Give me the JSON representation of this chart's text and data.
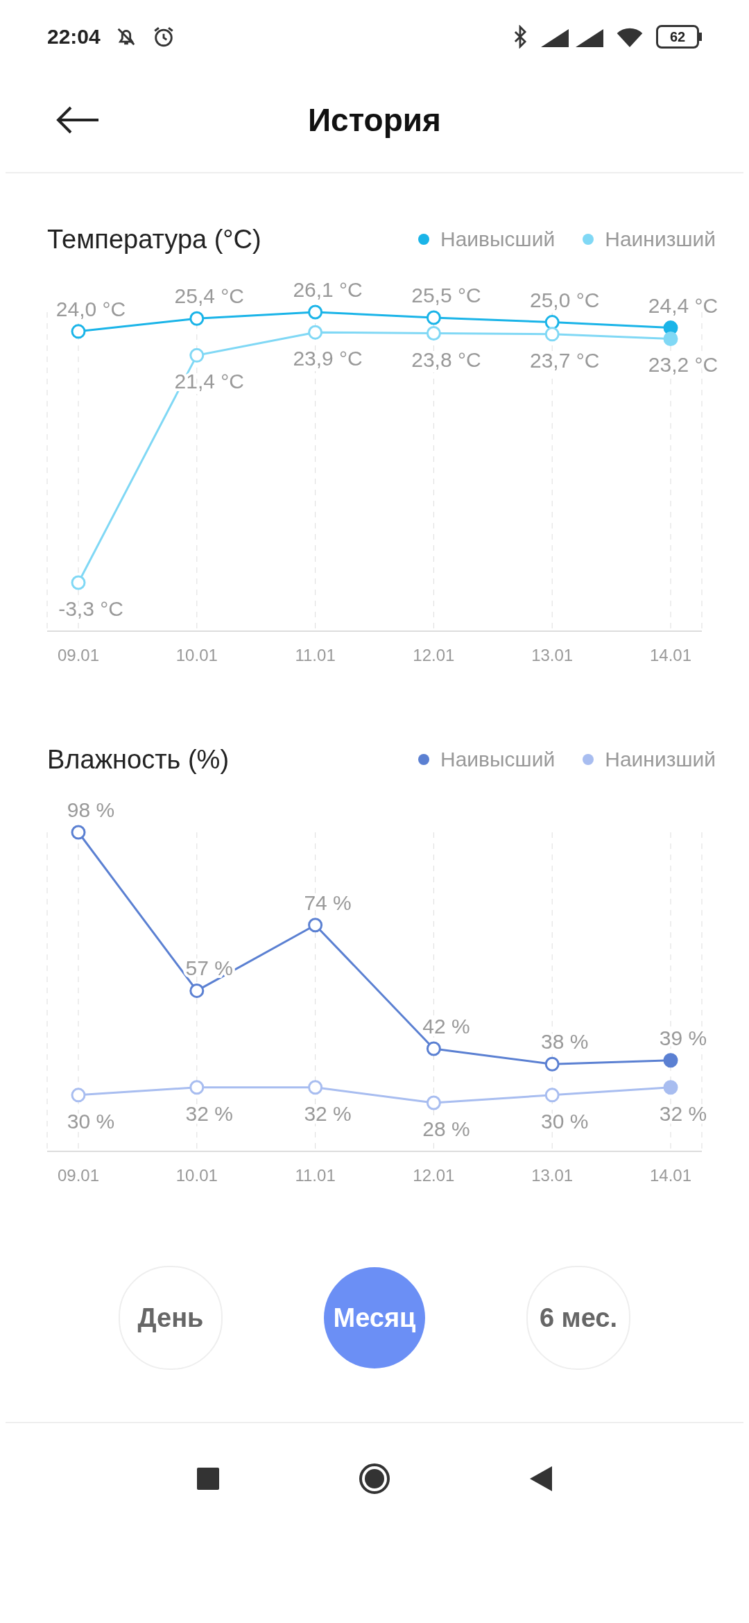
{
  "chart_data": [
    {
      "type": "other",
      "title": "История",
      "annotations": [
        "22:04",
        "62"
      ]
    },
    {
      "type": "line",
      "title": "Температура (°C)",
      "categories": [
        "09.01",
        "10.01",
        "11.01",
        "12.01",
        "13.01",
        "14.01"
      ],
      "legend": "top right",
      "grid": "x",
      "marker": "circle",
      "line_style": "solid",
      "tick_labels": "x",
      "series": [
        {
          "name": "Наивысший",
          "color": "#1ab4e8",
          "values": [
            24.0,
            25.4,
            26.1,
            25.5,
            25.0,
            24.4
          ],
          "value_labels": [
            "24,0 °C",
            "25,4 °C",
            "26,1 °C",
            "25,5 °C",
            "25,0 °C",
            "24,4 °C"
          ]
        },
        {
          "name": "Наинизший",
          "color": "#80d8f5",
          "values": [
            -3.3,
            21.4,
            23.9,
            23.8,
            23.7,
            23.2
          ],
          "value_labels": [
            "-3,3 °C",
            "21,4 °C",
            "23,9 °C",
            "23,8 °C",
            "23,7 °C",
            "23,2 °C"
          ]
        }
      ]
    },
    {
      "type": "line",
      "title": "Влажность (%)",
      "categories": [
        "09.01",
        "10.01",
        "11.01",
        "12.01",
        "13.01",
        "14.01"
      ],
      "legend": "top right",
      "grid": "x",
      "marker": "circle",
      "line_style": "solid",
      "tick_labels": "x",
      "series": [
        {
          "name": "Наивысший",
          "color": "#5b80d2",
          "values": [
            98,
            57,
            74,
            42,
            38,
            39
          ],
          "value_labels": [
            "98 %",
            "57 %",
            "74 %",
            "42 %",
            "38 %",
            "39 %"
          ]
        },
        {
          "name": "Наинизший",
          "color": "#a8bdf0",
          "values": [
            30,
            32,
            32,
            28,
            30,
            32
          ],
          "value_labels": [
            "30 %",
            "32 %",
            "32 %",
            "28 %",
            "30 %",
            "32 %"
          ]
        }
      ]
    },
    {
      "type": "other",
      "annotations": [
        "День",
        "Месяц",
        "6 мес."
      ]
    }
  ]
}
